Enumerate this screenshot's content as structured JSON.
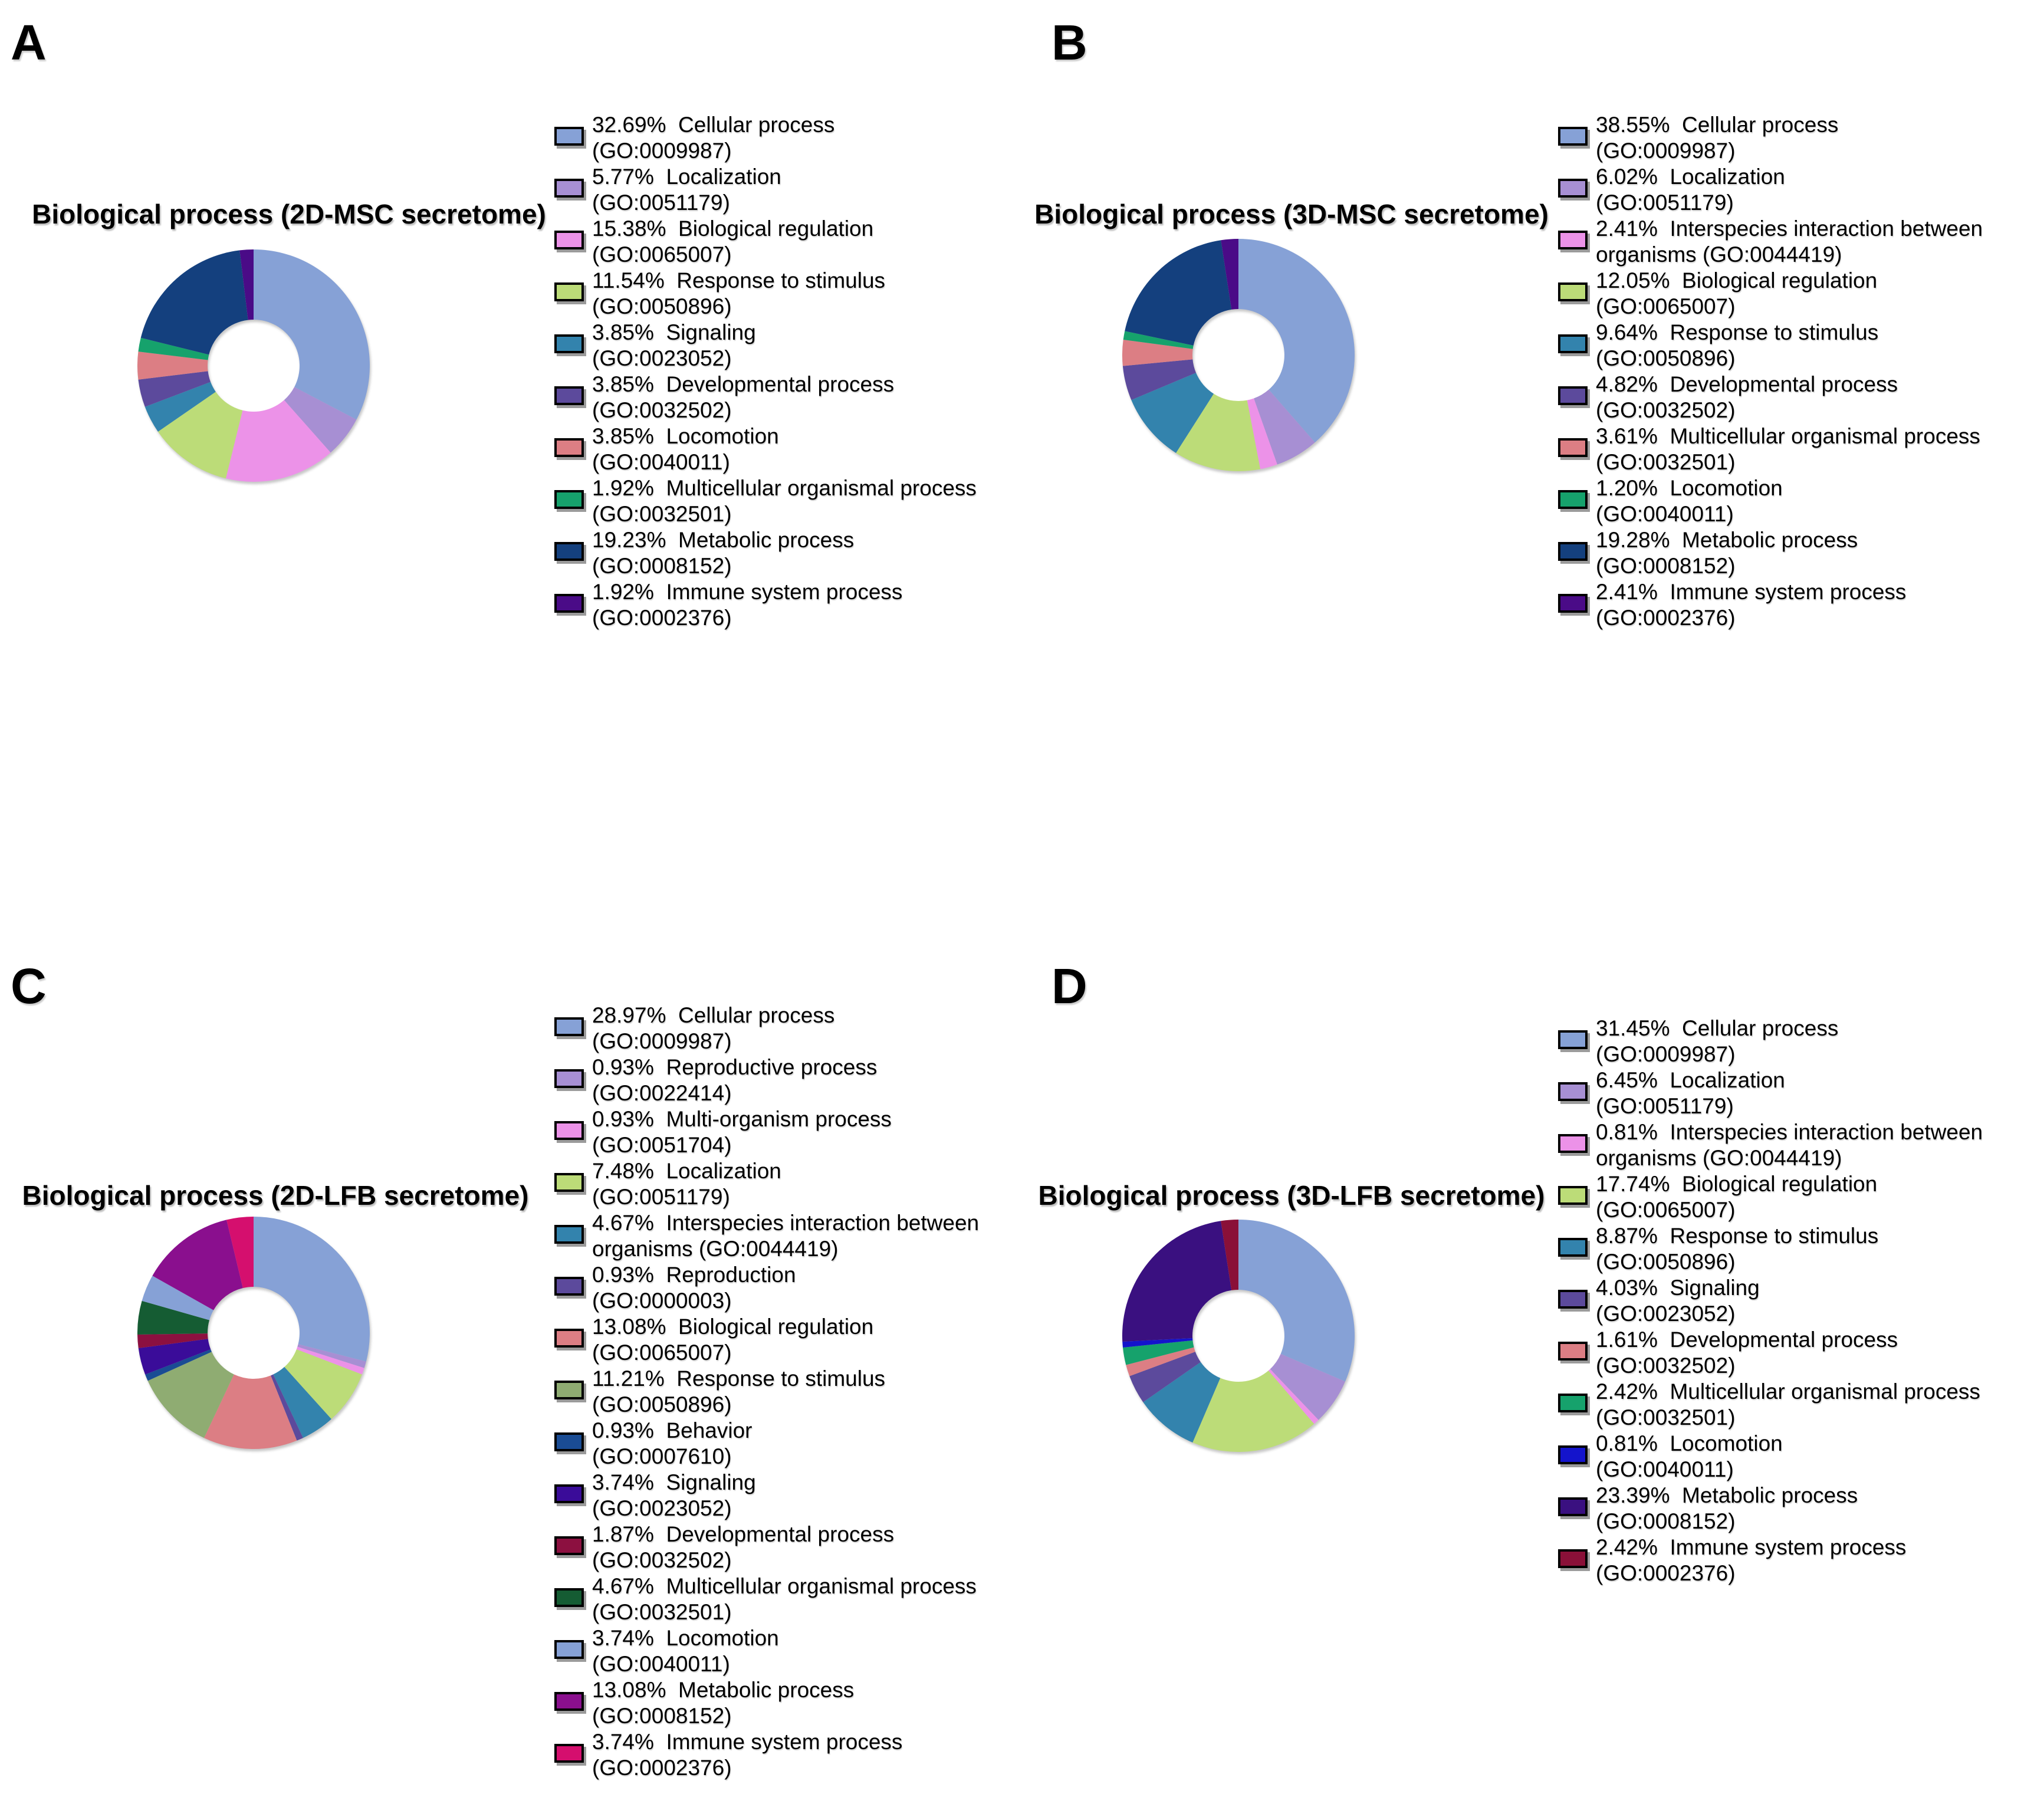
{
  "page": {
    "background": "#ffffff"
  },
  "panels": [
    {
      "letter": "A",
      "title": "Biological process (2D-MSC secretome)"
    },
    {
      "letter": "B",
      "title": "Biological process (3D-MSC secretome)"
    },
    {
      "letter": "C",
      "title": "Biological process (2D-LFB secretome)"
    },
    {
      "letter": "D",
      "title": "Biological process (3D-LFB secretome)"
    }
  ],
  "chart_data": [
    {
      "type": "pie",
      "subtype": "donut",
      "panel": "A",
      "title": "Biological process (2D-MSC secretome)",
      "values_unit": "%",
      "start_angle_deg": 0,
      "direction": "clockwise",
      "inner_radius_ratio": 0.4,
      "legend_position": "right",
      "slices": [
        {
          "pct": 32.69,
          "label": "Cellular process",
          "go": "GO:0009987",
          "color": "#86A1D6",
          "legend_lines": [
            "32.69%  Cellular process",
            "(GO:0009987)"
          ]
        },
        {
          "pct": 5.77,
          "label": "Localization",
          "go": "GO:0051179",
          "color": "#A78FD3",
          "legend_lines": [
            "5.77%  Localization",
            "(GO:0051179)"
          ]
        },
        {
          "pct": 15.38,
          "label": "Biological regulation",
          "go": "GO:0065007",
          "color": "#EC92E8",
          "legend_lines": [
            "15.38%  Biological regulation",
            "(GO:0065007)"
          ]
        },
        {
          "pct": 11.54,
          "label": "Response to stimulus",
          "go": "GO:0050896",
          "color": "#BCDC78",
          "legend_lines": [
            "11.54%  Response to stimulus",
            "(GO:0050896)"
          ]
        },
        {
          "pct": 3.85,
          "label": "Signaling",
          "go": "GO:0023052",
          "color": "#3383AD",
          "legend_lines": [
            "3.85%  Signaling",
            "(GO:0023052)"
          ]
        },
        {
          "pct": 3.85,
          "label": "Developmental process",
          "go": "GO:0032502",
          "color": "#5C4A9C",
          "legend_lines": [
            "3.85%  Developmental process",
            "(GO:0032502)"
          ]
        },
        {
          "pct": 3.85,
          "label": "Locomotion",
          "go": "GO:0040011",
          "color": "#DC7E84",
          "legend_lines": [
            "3.85%  Locomotion",
            "(GO:0040011)"
          ]
        },
        {
          "pct": 1.92,
          "label": "Multicellular organismal process",
          "go": "GO:0032501",
          "color": "#16A26C",
          "legend_lines": [
            "1.92%  Multicellular organismal process",
            "(GO:0032501)"
          ]
        },
        {
          "pct": 19.23,
          "label": "Metabolic process",
          "go": "GO:0008152",
          "color": "#14407E",
          "legend_lines": [
            "19.23%  Metabolic process",
            "(GO:0008152)"
          ]
        },
        {
          "pct": 1.92,
          "label": "Immune system process",
          "go": "GO:0002376",
          "color": "#4A0B87",
          "legend_lines": [
            "1.92%  Immune system process",
            "(GO:0002376)"
          ]
        }
      ]
    },
    {
      "type": "pie",
      "subtype": "donut",
      "panel": "B",
      "title": "Biological process (3D-MSC secretome)",
      "values_unit": "%",
      "start_angle_deg": 0,
      "direction": "clockwise",
      "inner_radius_ratio": 0.4,
      "legend_position": "right",
      "slices": [
        {
          "pct": 38.55,
          "label": "Cellular process",
          "go": "GO:0009987",
          "color": "#86A1D6",
          "legend_lines": [
            "38.55%  Cellular process",
            "(GO:0009987)"
          ]
        },
        {
          "pct": 6.02,
          "label": "Localization",
          "go": "GO:0051179",
          "color": "#A78FD3",
          "legend_lines": [
            "6.02%  Localization",
            "(GO:0051179)"
          ]
        },
        {
          "pct": 2.41,
          "label": "Interspecies interaction between organisms",
          "go": "GO:0044419",
          "color": "#EC92E8",
          "legend_lines": [
            "2.41%  Interspecies interaction between",
            "organisms (GO:0044419)"
          ]
        },
        {
          "pct": 12.05,
          "label": "Biological regulation",
          "go": "GO:0065007",
          "color": "#BCDC78",
          "legend_lines": [
            "12.05%  Biological regulation",
            "(GO:0065007)"
          ]
        },
        {
          "pct": 9.64,
          "label": "Response to stimulus",
          "go": "GO:0050896",
          "color": "#3383AD",
          "legend_lines": [
            "9.64%  Response to stimulus",
            "(GO:0050896)"
          ]
        },
        {
          "pct": 4.82,
          "label": "Developmental process",
          "go": "GO:0032502",
          "color": "#5C4A9C",
          "legend_lines": [
            "4.82%  Developmental process",
            "(GO:0032502)"
          ]
        },
        {
          "pct": 3.61,
          "label": "Multicellular organismal process",
          "go": "GO:0032501",
          "color": "#DC7E84",
          "legend_lines": [
            "3.61%  Multicellular organismal process",
            "(GO:0032501)"
          ]
        },
        {
          "pct": 1.2,
          "label": "Locomotion",
          "go": "GO:0040011",
          "color": "#16A26C",
          "legend_lines": [
            "1.20%  Locomotion",
            "(GO:0040011)"
          ]
        },
        {
          "pct": 19.28,
          "label": "Metabolic process",
          "go": "GO:0008152",
          "color": "#14407E",
          "legend_lines": [
            "19.28%  Metabolic process",
            "(GO:0008152)"
          ]
        },
        {
          "pct": 2.41,
          "label": "Immune system process",
          "go": "GO:0002376",
          "color": "#4A0B87",
          "legend_lines": [
            "2.41%  Immune system process",
            "(GO:0002376)"
          ]
        }
      ]
    },
    {
      "type": "pie",
      "subtype": "donut",
      "panel": "C",
      "title": "Biological process (2D-LFB secretome)",
      "values_unit": "%",
      "start_angle_deg": 0,
      "direction": "clockwise",
      "inner_radius_ratio": 0.4,
      "legend_position": "right",
      "slices": [
        {
          "pct": 28.97,
          "label": "Cellular process",
          "go": "GO:0009987",
          "color": "#86A1D6",
          "legend_lines": [
            "28.97%  Cellular process",
            "(GO:0009987)"
          ]
        },
        {
          "pct": 0.93,
          "label": "Reproductive process",
          "go": "GO:0022414",
          "color": "#A78FD3",
          "legend_lines": [
            "0.93%  Reproductive process",
            "(GO:0022414)"
          ]
        },
        {
          "pct": 0.93,
          "label": "Multi-organism process",
          "go": "GO:0051704",
          "color": "#EC92E8",
          "legend_lines": [
            "0.93%  Multi-organism process",
            "(GO:0051704)"
          ]
        },
        {
          "pct": 7.48,
          "label": "Localization",
          "go": "GO:0051179",
          "color": "#BCDC78",
          "legend_lines": [
            "7.48%  Localization",
            "(GO:0051179)"
          ]
        },
        {
          "pct": 4.67,
          "label": "Interspecies interaction between organisms",
          "go": "GO:0044419",
          "color": "#3383AD",
          "legend_lines": [
            "4.67%  Interspecies interaction between",
            "organisms (GO:0044419)"
          ]
        },
        {
          "pct": 0.93,
          "label": "Reproduction",
          "go": "GO:0000003",
          "color": "#5C4A9C",
          "legend_lines": [
            "0.93%  Reproduction",
            "(GO:0000003)"
          ]
        },
        {
          "pct": 13.08,
          "label": "Biological regulation",
          "go": "GO:0065007",
          "color": "#DC7E84",
          "legend_lines": [
            "13.08%  Biological regulation",
            "(GO:0065007)"
          ]
        },
        {
          "pct": 11.21,
          "label": "Response to stimulus",
          "go": "GO:0050896",
          "color": "#8FAC72",
          "legend_lines": [
            "11.21%  Response to stimulus",
            "(GO:0050896)"
          ]
        },
        {
          "pct": 0.93,
          "label": "Behavior",
          "go": "GO:0007610",
          "color": "#1A4C94",
          "legend_lines": [
            "0.93%  Behavior",
            "(GO:0007610)"
          ]
        },
        {
          "pct": 3.74,
          "label": "Signaling",
          "go": "GO:0023052",
          "color": "#3A0C99",
          "legend_lines": [
            "3.74%  Signaling",
            "(GO:0023052)"
          ]
        },
        {
          "pct": 1.87,
          "label": "Developmental process",
          "go": "GO:0032502",
          "color": "#8C1040",
          "legend_lines": [
            "1.87%  Developmental process",
            "(GO:0032502)"
          ]
        },
        {
          "pct": 4.67,
          "label": "Multicellular organismal process",
          "go": "GO:0032501",
          "color": "#155C33",
          "legend_lines": [
            "4.67%  Multicellular organismal process",
            "(GO:0032501)"
          ]
        },
        {
          "pct": 3.74,
          "label": "Locomotion",
          "go": "GO:0040011",
          "color": "#86A1D6",
          "legend_lines": [
            "3.74%  Locomotion",
            "(GO:0040011)"
          ]
        },
        {
          "pct": 13.08,
          "label": "Metabolic process",
          "go": "GO:0008152",
          "color": "#8A0F8E",
          "legend_lines": [
            "13.08%  Metabolic process",
            "(GO:0008152)"
          ]
        },
        {
          "pct": 3.74,
          "label": "Immune system process",
          "go": "GO:0002376",
          "color": "#D50F6E",
          "legend_lines": [
            "3.74%  Immune system process",
            "(GO:0002376)"
          ]
        }
      ]
    },
    {
      "type": "pie",
      "subtype": "donut",
      "panel": "D",
      "title": "Biological process (3D-LFB secretome)",
      "values_unit": "%",
      "start_angle_deg": 0,
      "direction": "clockwise",
      "inner_radius_ratio": 0.4,
      "legend_position": "right",
      "slices": [
        {
          "pct": 31.45,
          "label": "Cellular process",
          "go": "GO:0009987",
          "color": "#86A1D6",
          "legend_lines": [
            "31.45%  Cellular process",
            "(GO:0009987)"
          ]
        },
        {
          "pct": 6.45,
          "label": "Localization",
          "go": "GO:0051179",
          "color": "#A78FD3",
          "legend_lines": [
            "6.45%  Localization",
            "(GO:0051179)"
          ]
        },
        {
          "pct": 0.81,
          "label": "Interspecies interaction between organisms",
          "go": "GO:0044419",
          "color": "#EC92E8",
          "legend_lines": [
            "0.81%  Interspecies interaction between",
            "organisms (GO:0044419)"
          ]
        },
        {
          "pct": 17.74,
          "label": "Biological regulation",
          "go": "GO:0065007",
          "color": "#BCDC78",
          "legend_lines": [
            "17.74%  Biological regulation",
            "(GO:0065007)"
          ]
        },
        {
          "pct": 8.87,
          "label": "Response to stimulus",
          "go": "GO:0050896",
          "color": "#3383AD",
          "legend_lines": [
            "8.87%  Response to stimulus",
            "(GO:0050896)"
          ]
        },
        {
          "pct": 4.03,
          "label": "Signaling",
          "go": "GO:0023052",
          "color": "#5C4A9C",
          "legend_lines": [
            "4.03%  Signaling",
            "(GO:0023052)"
          ]
        },
        {
          "pct": 1.61,
          "label": "Developmental process",
          "go": "GO:0032502",
          "color": "#DC7E84",
          "legend_lines": [
            "1.61%  Developmental process",
            "(GO:0032502)"
          ]
        },
        {
          "pct": 2.42,
          "label": "Multicellular organismal process",
          "go": "GO:0032501",
          "color": "#16A26C",
          "legend_lines": [
            "2.42%  Multicellular organismal process",
            "(GO:0032501)"
          ]
        },
        {
          "pct": 0.81,
          "label": "Locomotion",
          "go": "GO:0040011",
          "color": "#1414CC",
          "legend_lines": [
            "0.81%  Locomotion",
            "(GO:0040011)"
          ]
        },
        {
          "pct": 23.39,
          "label": "Metabolic process",
          "go": "GO:0008152",
          "color": "#3A1080",
          "legend_lines": [
            "23.39%  Metabolic process",
            "(GO:0008152)"
          ]
        },
        {
          "pct": 2.42,
          "label": "Immune system process",
          "go": "GO:0002376",
          "color": "#8A1038",
          "legend_lines": [
            "2.42%  Immune system process",
            "(GO:0002376)"
          ]
        }
      ]
    }
  ]
}
